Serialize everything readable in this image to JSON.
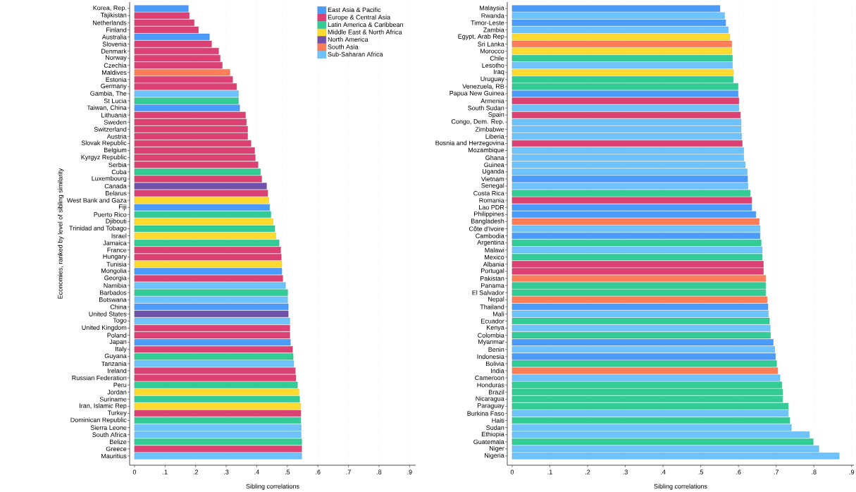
{
  "chart_data": [
    {
      "type": "bar",
      "orientation": "horizontal",
      "xlabel": "Sibling correlations",
      "ylabel": "Economies, ranked by level of sibling similarity",
      "legend": "top right",
      "grid": "x",
      "categories": [
        "Korea, Rep.",
        "Tajikistan",
        "Netherlands",
        "Finland",
        "Australia",
        "Slovenia",
        "Denmark",
        "Norway",
        "Czechia",
        "Maldives",
        "Estonia",
        "Germany",
        "Gambia, The",
        "St Lucia",
        "Taiwan, China",
        "Lithuania",
        "Sweden",
        "Switzerland",
        "Austria",
        "Slovak Republic",
        "Belgium",
        "Kyrgyz Republic",
        "Serbia",
        "Cuba",
        "Luxembourg",
        "Canada",
        "Belarus",
        "West Bank and Gaza",
        "Fiji",
        "Puerto Rico",
        "Djibouti",
        "Trinidad and Tobago",
        "Israel",
        "Jamaica",
        "France",
        "Hungary",
        "Tunisia",
        "Mongolia",
        "Georgia",
        "Namibia",
        "Barbados",
        "Botswana",
        "China",
        "United States",
        "Togo",
        "United Kingdom",
        "Poland",
        "Japan",
        "Italy",
        "Guyana",
        "Tanzania",
        "Ireland",
        "Russian Federation",
        "Peru",
        "Jordan",
        "Suriname",
        "Iran, Islamic Rep",
        "Turkey",
        "Dominican Republic",
        "Sierra Leone",
        "South Africa",
        "Belize",
        "Greece",
        "Mauritius"
      ],
      "xlim": [
        -0.016,
        0.92
      ],
      "xticks": [
        0,
        {
          "value": 0.1,
          "label": ".1"
        },
        {
          "value": 0.2,
          "label": ".2"
        },
        {
          "value": 0.3,
          "label": ".3"
        },
        {
          "value": 0.4,
          "label": ".4"
        },
        {
          "value": 0.5,
          "label": ".5"
        },
        {
          "value": 0.6,
          "label": ".6"
        },
        {
          "value": 0.7,
          "label": ".7"
        },
        {
          "value": 0.8,
          "label": ".8"
        },
        {
          "value": 0.9,
          "label": ".9"
        }
      ],
      "series": [
        {
          "name": "East Asia & Pacific",
          "color": "#4b9bfa",
          "values": [
            0.176,
            null,
            null,
            null,
            0.245,
            null,
            null,
            null,
            null,
            null,
            null,
            null,
            null,
            null,
            0.344,
            null,
            null,
            null,
            null,
            null,
            null,
            null,
            null,
            null,
            null,
            null,
            null,
            null,
            0.442,
            null,
            null,
            null,
            null,
            null,
            null,
            null,
            null,
            0.482,
            null,
            null,
            null,
            null,
            0.503,
            null,
            null,
            null,
            null,
            0.51,
            null,
            null,
            null,
            null,
            null,
            null,
            null,
            null,
            null,
            null,
            null,
            null,
            null,
            null,
            null,
            null
          ]
        },
        {
          "name": "Europe & Central Asia",
          "color": "#dc4174",
          "values": [
            null,
            0.179,
            0.195,
            0.209,
            null,
            0.252,
            0.275,
            0.28,
            0.287,
            null,
            0.321,
            0.334,
            null,
            null,
            null,
            0.363,
            0.366,
            0.37,
            0.37,
            0.381,
            0.393,
            0.395,
            0.404,
            null,
            0.416,
            null,
            0.436,
            null,
            null,
            null,
            null,
            null,
            null,
            null,
            0.478,
            0.48,
            null,
            null,
            0.485,
            null,
            null,
            null,
            null,
            null,
            null,
            0.508,
            0.508,
            null,
            0.517,
            null,
            null,
            0.526,
            0.528,
            null,
            null,
            null,
            null,
            0.544,
            null,
            null,
            null,
            null,
            0.547,
            null
          ]
        },
        {
          "name": "Latin America & Caribbean",
          "color": "#33cc96",
          "values": [
            null,
            null,
            null,
            null,
            null,
            null,
            null,
            null,
            null,
            null,
            null,
            null,
            null,
            0.34,
            null,
            null,
            null,
            null,
            null,
            null,
            null,
            null,
            null,
            0.412,
            null,
            null,
            null,
            null,
            null,
            0.446,
            null,
            0.459,
            null,
            0.473,
            null,
            null,
            null,
            null,
            null,
            null,
            0.501,
            null,
            null,
            null,
            null,
            null,
            null,
            null,
            null,
            0.519,
            null,
            null,
            null,
            0.533,
            null,
            0.54,
            null,
            null,
            0.544,
            null,
            null,
            0.547,
            null,
            null
          ]
        },
        {
          "name": "Middle East & North Africa",
          "color": "#ffdb30",
          "values": [
            null,
            null,
            null,
            null,
            null,
            null,
            null,
            null,
            null,
            null,
            null,
            null,
            null,
            null,
            null,
            null,
            null,
            null,
            null,
            null,
            null,
            null,
            null,
            null,
            null,
            null,
            null,
            0.439,
            null,
            null,
            0.453,
            null,
            0.462,
            null,
            null,
            null,
            0.482,
            null,
            null,
            null,
            null,
            null,
            null,
            null,
            null,
            null,
            null,
            null,
            null,
            null,
            null,
            null,
            null,
            null,
            0.538,
            null,
            0.543,
            null,
            null,
            null,
            null,
            null,
            null,
            null
          ]
        },
        {
          "name": "North America",
          "color": "#7052aa",
          "values": [
            null,
            null,
            null,
            null,
            null,
            null,
            null,
            null,
            null,
            null,
            null,
            null,
            null,
            null,
            null,
            null,
            null,
            null,
            null,
            null,
            null,
            null,
            null,
            null,
            null,
            0.432,
            null,
            null,
            null,
            null,
            null,
            null,
            null,
            null,
            null,
            null,
            null,
            null,
            null,
            null,
            null,
            null,
            null,
            0.503,
            null,
            null,
            null,
            null,
            null,
            null,
            null,
            null,
            null,
            null,
            null,
            null,
            null,
            null,
            null,
            null,
            null,
            null,
            null,
            null
          ]
        },
        {
          "name": "South Asia",
          "color": "#ff7d57",
          "values": [
            null,
            null,
            null,
            null,
            null,
            null,
            null,
            null,
            null,
            0.312,
            null,
            null,
            null,
            null,
            null,
            null,
            null,
            null,
            null,
            null,
            null,
            null,
            null,
            null,
            null,
            null,
            null,
            null,
            null,
            null,
            null,
            null,
            null,
            null,
            null,
            null,
            null,
            null,
            null,
            null,
            null,
            null,
            null,
            null,
            null,
            null,
            null,
            null,
            null,
            null,
            null,
            null,
            null,
            null,
            null,
            null,
            null,
            null,
            null,
            null,
            null,
            null,
            null,
            null
          ]
        },
        {
          "name": "Sub-Saharan Africa",
          "color": "#6ec3fd",
          "values": [
            null,
            null,
            null,
            null,
            null,
            null,
            null,
            null,
            null,
            null,
            null,
            null,
            0.34,
            null,
            null,
            null,
            null,
            null,
            null,
            null,
            null,
            null,
            null,
            null,
            null,
            null,
            null,
            null,
            null,
            null,
            null,
            null,
            null,
            null,
            null,
            null,
            null,
            null,
            null,
            0.494,
            null,
            0.501,
            null,
            null,
            0.508,
            null,
            null,
            null,
            null,
            null,
            0.521,
            null,
            null,
            null,
            null,
            null,
            null,
            null,
            null,
            0.545,
            0.545,
            null,
            null,
            0.547
          ]
        }
      ]
    },
    {
      "type": "bar",
      "orientation": "horizontal",
      "xlabel": "Sibling correlations",
      "grid": "x",
      "categories": [
        "Malaysia",
        "Rwanda",
        "Timor-Leste",
        "Zambia",
        "Egypt, Arab Rep",
        "Sri Lanka",
        "Morocco",
        "Chile",
        "Lesotho",
        "Iraq",
        "Uruguay",
        "Venezuela, RB",
        "Papua New Guinea",
        "Armenia",
        "South Sudan",
        "Spain",
        "Congo, Dem. Rep.",
        "Zimbabwe",
        "Liberia",
        "Bosnia and Herzegovina",
        "Mozambique",
        "Ghana",
        "Guinea",
        "Uganda",
        "Vietnam",
        "Senegal",
        "Costa Rica",
        "Romania",
        "Lao PDR",
        "Philippines",
        "Bangladesh",
        "Côte d'Ivoire",
        "Cambodia",
        "Argentina",
        "Malawi",
        "Mexico",
        "Albania",
        "Portugal",
        "Pakistan",
        "Panama",
        "El Salvador",
        "Nepal",
        "Thailand",
        "Mali",
        "Ecuador",
        "Kenya",
        "Colombia",
        "Myanmar",
        "Benin",
        "Indonesia",
        "Bolivia",
        "India",
        "Cameroon",
        "Honduras",
        "Brazil",
        "Nicaragua",
        "Paraguay",
        "Burkina Faso",
        "Haiti",
        "Sudan",
        "Ethiopia",
        "Guatemala",
        "Niger",
        "Nigeria"
      ],
      "xlim": [
        -0.013,
        0.906
      ],
      "xticks": [
        0,
        {
          "value": 0.1,
          "label": ".1"
        },
        {
          "value": 0.2,
          "label": ".2"
        },
        {
          "value": 0.3,
          "label": ".3"
        },
        {
          "value": 0.4,
          "label": ".4"
        },
        {
          "value": 0.5,
          "label": ".5"
        },
        {
          "value": 0.6,
          "label": ".6"
        },
        {
          "value": 0.7,
          "label": ".7"
        },
        {
          "value": 0.8,
          "label": ".8"
        },
        {
          "value": 0.9,
          "label": ".9"
        }
      ],
      "series": [
        {
          "color": "#4b9bfa",
          "values": [
            0.551,
            null,
            0.566,
            null,
            null,
            null,
            null,
            null,
            null,
            null,
            null,
            null,
            0.599,
            null,
            null,
            null,
            null,
            null,
            null,
            null,
            null,
            null,
            null,
            null,
            0.624,
            null,
            null,
            null,
            0.635,
            0.646,
            null,
            null,
            0.657,
            null,
            null,
            null,
            null,
            null,
            null,
            null,
            null,
            null,
            0.678,
            null,
            null,
            null,
            null,
            0.692,
            null,
            0.698,
            null,
            null,
            null,
            null,
            null,
            null,
            null,
            null,
            null,
            null,
            null,
            null,
            null,
            null
          ]
        },
        {
          "color": "#dc4174",
          "values": [
            null,
            null,
            null,
            null,
            null,
            null,
            null,
            null,
            null,
            null,
            null,
            null,
            null,
            0.601,
            null,
            0.605,
            null,
            null,
            null,
            0.61,
            null,
            null,
            null,
            null,
            null,
            null,
            null,
            0.635,
            null,
            null,
            null,
            null,
            null,
            null,
            null,
            null,
            0.666,
            0.666,
            null,
            null,
            null,
            null,
            null,
            null,
            null,
            null,
            null,
            null,
            null,
            null,
            null,
            null,
            null,
            null,
            null,
            null,
            null,
            null,
            null,
            null,
            null,
            null,
            null,
            null
          ]
        },
        {
          "color": "#33cc96",
          "values": [
            null,
            null,
            null,
            null,
            null,
            null,
            null,
            0.584,
            null,
            null,
            0.586,
            0.599,
            null,
            null,
            null,
            null,
            null,
            null,
            null,
            null,
            null,
            null,
            null,
            null,
            null,
            null,
            0.631,
            null,
            null,
            null,
            null,
            null,
            null,
            0.66,
            null,
            0.663,
            null,
            null,
            null,
            0.672,
            0.672,
            null,
            null,
            null,
            0.682,
            null,
            0.685,
            null,
            null,
            null,
            0.701,
            null,
            null,
            0.715,
            0.717,
            0.717,
            0.732,
            null,
            0.736,
            null,
            null,
            0.798,
            null,
            null
          ]
        },
        {
          "color": "#ffdb30",
          "values": [
            null,
            null,
            null,
            null,
            0.577,
            null,
            0.582,
            null,
            null,
            0.586,
            null,
            null,
            null,
            null,
            null,
            null,
            null,
            null,
            null,
            null,
            null,
            null,
            null,
            null,
            null,
            null,
            null,
            null,
            null,
            null,
            null,
            null,
            null,
            null,
            null,
            null,
            null,
            null,
            null,
            null,
            null,
            null,
            null,
            null,
            null,
            null,
            null,
            null,
            null,
            null,
            null,
            null,
            null,
            null,
            null,
            null,
            null,
            null,
            null,
            null,
            null,
            null,
            null,
            null
          ]
        },
        {
          "color": "#ff7d57",
          "values": [
            null,
            null,
            null,
            null,
            null,
            0.582,
            null,
            null,
            null,
            null,
            null,
            null,
            null,
            null,
            null,
            null,
            null,
            null,
            null,
            null,
            null,
            null,
            null,
            null,
            null,
            null,
            null,
            null,
            null,
            null,
            0.655,
            null,
            null,
            null,
            null,
            null,
            null,
            null,
            0.672,
            null,
            null,
            0.676,
            null,
            null,
            null,
            null,
            null,
            null,
            null,
            null,
            null,
            0.704,
            null,
            null,
            null,
            null,
            null,
            null,
            null,
            null,
            null,
            null,
            null,
            null
          ]
        },
        {
          "color": "#6ec3fd",
          "values": [
            null,
            0.563,
            null,
            0.573,
            null,
            null,
            null,
            null,
            0.584,
            null,
            null,
            null,
            null,
            null,
            0.601,
            null,
            0.607,
            0.607,
            0.608,
            null,
            0.614,
            0.614,
            0.618,
            0.623,
            null,
            0.625,
            null,
            null,
            null,
            null,
            null,
            0.657,
            null,
            null,
            0.663,
            null,
            null,
            null,
            null,
            null,
            null,
            null,
            null,
            0.679,
            null,
            0.684,
            null,
            null,
            0.696,
            null,
            null,
            null,
            0.71,
            null,
            null,
            null,
            null,
            0.732,
            null,
            0.74,
            0.788,
            null,
            0.813,
            0.867
          ]
        }
      ]
    }
  ]
}
